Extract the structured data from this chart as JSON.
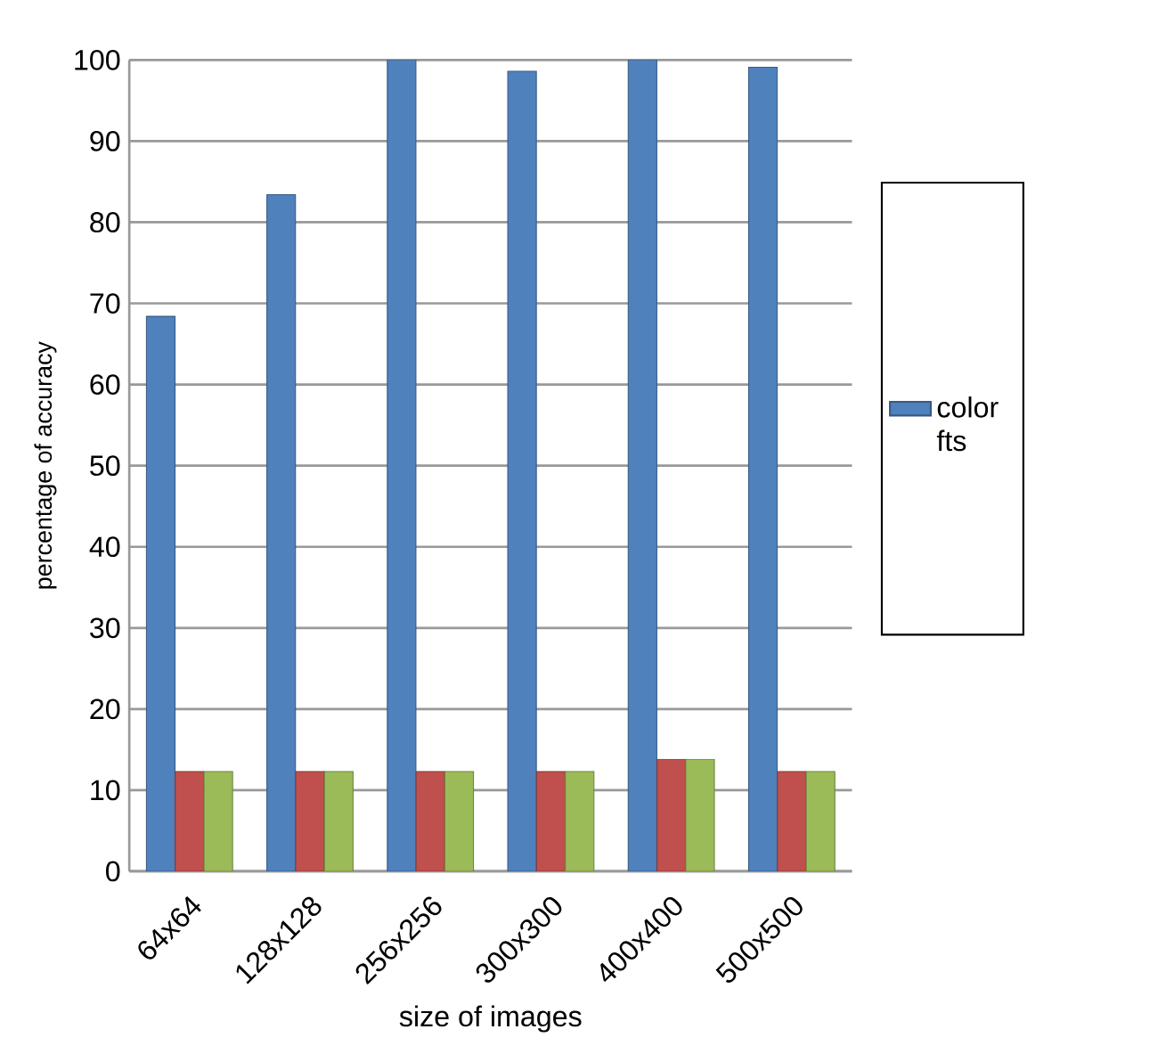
{
  "chart_data": {
    "type": "bar",
    "xlabel": "size of images",
    "ylabel": "percentage of accuracy",
    "categories": [
      "64x64",
      "128x128",
      "256x256",
      "300x300",
      "400x400",
      "500x500"
    ],
    "series": [
      {
        "name": "color fts",
        "color": "#4f81bd",
        "values": [
          68.4,
          83.4,
          100,
          98.6,
          100,
          99.1
        ]
      },
      {
        "color": "#c0504d",
        "values": [
          12.3,
          12.3,
          12.3,
          12.3,
          13.8,
          12.3
        ]
      },
      {
        "color": "#9bbb59",
        "values": [
          12.3,
          12.3,
          12.3,
          12.3,
          13.8,
          12.3
        ]
      }
    ],
    "ylim": [
      0,
      100
    ],
    "yticks": [
      0,
      10,
      20,
      30,
      40,
      50,
      60,
      70,
      80,
      90,
      100
    ],
    "grid": "y",
    "legend": "right"
  }
}
